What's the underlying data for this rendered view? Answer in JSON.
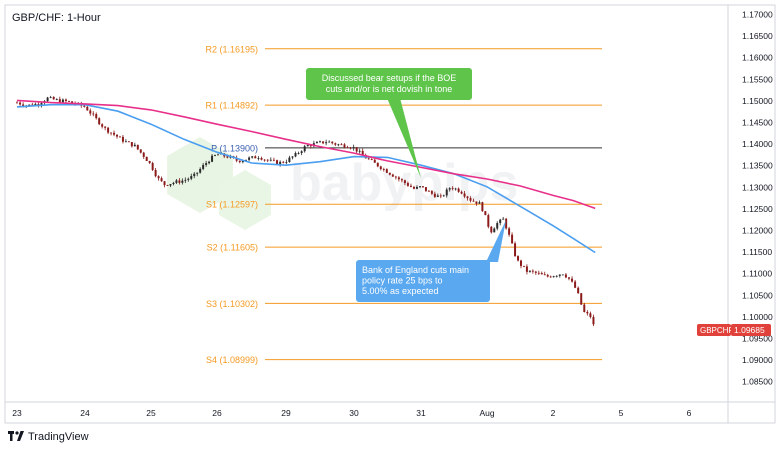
{
  "header": {
    "title": "GBP/CHF: 1-Hour"
  },
  "footer": {
    "brand": "TradingView",
    "logo_icon": "tradingview-logo-icon"
  },
  "watermark": "babypips",
  "colors": {
    "pivot_levels": "#f59a23",
    "pivot_line": "#333333",
    "ma_fast": "#4a9ef0",
    "ma_slow": "#e8308a",
    "candle_up": "#2a2a2a",
    "candle_down": "#8b1a1a",
    "callout_green": "#5ec44a",
    "callout_blue": "#5aa8f0",
    "price_tag": "#e0413a"
  },
  "chart_data": {
    "type": "line",
    "symbol": "GBPCHF",
    "last_price": "1.09685",
    "y_ticks": [
      "1.17000",
      "1.16500",
      "1.16000",
      "1.15500",
      "1.15000",
      "1.14500",
      "1.14000",
      "1.13500",
      "1.13000",
      "1.12500",
      "1.12000",
      "1.11500",
      "1.11000",
      "1.10500",
      "1.10000",
      "1.09500",
      "1.09000",
      "1.08500"
    ],
    "ylim": [
      1.084,
      1.1725
    ],
    "x_ticks": [
      "23",
      "24",
      "25",
      "26",
      "29",
      "30",
      "31",
      "Aug",
      "2",
      "5",
      "6"
    ],
    "levels": [
      {
        "label": "R2 (1.16195)",
        "value": 1.16195,
        "style": "resistance"
      },
      {
        "label": "R1 (1.14892)",
        "value": 1.14892,
        "style": "resistance"
      },
      {
        "label": "P (1.13900)",
        "value": 1.139,
        "style": "pivot"
      },
      {
        "label": "S1 (1.12597)",
        "value": 1.12597,
        "style": "support"
      },
      {
        "label": "S2 (1.11605)",
        "value": 1.11605,
        "style": "support"
      },
      {
        "label": "S3 (1.10302)",
        "value": 1.10302,
        "style": "support"
      },
      {
        "label": "S4 (1.08999)",
        "value": 1.08999,
        "style": "support"
      }
    ],
    "price_series": [
      [
        0,
        1.1495
      ],
      [
        0.15,
        1.1488
      ],
      [
        0.3,
        1.1492
      ],
      [
        0.45,
        1.1505
      ],
      [
        0.6,
        1.15
      ],
      [
        0.75,
        1.1497
      ],
      [
        0.9,
        1.149
      ],
      [
        1.0,
        1.1485
      ],
      [
        1.15,
        1.146
      ],
      [
        1.3,
        1.1435
      ],
      [
        1.45,
        1.142
      ],
      [
        1.6,
        1.1405
      ],
      [
        1.75,
        1.1395
      ],
      [
        1.9,
        1.137
      ],
      [
        2.0,
        1.135
      ],
      [
        2.1,
        1.132
      ],
      [
        2.2,
        1.1305
      ],
      [
        2.35,
        1.131
      ],
      [
        2.5,
        1.1315
      ],
      [
        2.65,
        1.1325
      ],
      [
        2.8,
        1.135
      ],
      [
        2.9,
        1.1365
      ],
      [
        3.0,
        1.1375
      ],
      [
        3.15,
        1.137
      ],
      [
        3.3,
        1.136
      ],
      [
        3.45,
        1.1365
      ],
      [
        3.6,
        1.137
      ],
      [
        3.75,
        1.136
      ],
      [
        3.9,
        1.1355
      ],
      [
        4.0,
        1.136
      ],
      [
        4.15,
        1.1375
      ],
      [
        4.3,
        1.1395
      ],
      [
        4.45,
        1.14
      ],
      [
        4.6,
        1.1405
      ],
      [
        4.75,
        1.1398
      ],
      [
        4.9,
        1.1395
      ],
      [
        5.0,
        1.139
      ],
      [
        5.15,
        1.137
      ],
      [
        5.3,
        1.1355
      ],
      [
        5.45,
        1.134
      ],
      [
        5.6,
        1.1325
      ],
      [
        5.75,
        1.131
      ],
      [
        5.9,
        1.1295
      ],
      [
        6.0,
        1.13
      ],
      [
        6.15,
        1.1285
      ],
      [
        6.3,
        1.1275
      ],
      [
        6.45,
        1.13
      ],
      [
        6.6,
        1.129
      ],
      [
        6.75,
        1.127
      ],
      [
        6.9,
        1.126
      ],
      [
        7.0,
        1.122
      ],
      [
        7.05,
        1.1195
      ],
      [
        7.15,
        1.1215
      ],
      [
        7.25,
        1.1225
      ],
      [
        7.35,
        1.118
      ],
      [
        7.45,
        1.113
      ],
      [
        7.6,
        1.1105
      ],
      [
        7.75,
        1.11
      ],
      [
        7.9,
        1.1092
      ],
      [
        8.0,
        1.1095
      ],
      [
        8.15,
        1.11
      ],
      [
        8.25,
        1.1085
      ],
      [
        8.35,
        1.106
      ],
      [
        8.45,
        1.101
      ],
      [
        8.55,
        1.1
      ],
      [
        8.62,
        1.0968
      ]
    ],
    "ma_fast": [
      [
        0,
        1.1485
      ],
      [
        0.5,
        1.149
      ],
      [
        1.0,
        1.149
      ],
      [
        1.5,
        1.1475
      ],
      [
        2.0,
        1.1445
      ],
      [
        2.5,
        1.141
      ],
      [
        3.0,
        1.138
      ],
      [
        3.5,
        1.1355
      ],
      [
        4.0,
        1.135
      ],
      [
        4.5,
        1.1358
      ],
      [
        5.0,
        1.137
      ],
      [
        5.5,
        1.1368
      ],
      [
        6.0,
        1.135
      ],
      [
        6.5,
        1.133
      ],
      [
        7.0,
        1.13
      ],
      [
        7.5,
        1.1255
      ],
      [
        8.0,
        1.121
      ],
      [
        8.3,
        1.118
      ],
      [
        8.62,
        1.1148
      ]
    ],
    "ma_slow": [
      [
        0,
        1.15
      ],
      [
        0.5,
        1.1495
      ],
      [
        1.0,
        1.1492
      ],
      [
        1.5,
        1.1488
      ],
      [
        2.0,
        1.1478
      ],
      [
        2.5,
        1.1462
      ],
      [
        3.0,
        1.1445
      ],
      [
        3.5,
        1.1428
      ],
      [
        4.0,
        1.141
      ],
      [
        4.5,
        1.1393
      ],
      [
        5.0,
        1.1378
      ],
      [
        5.5,
        1.136
      ],
      [
        6.0,
        1.1345
      ],
      [
        6.5,
        1.133
      ],
      [
        7.0,
        1.1318
      ],
      [
        7.5,
        1.1302
      ],
      [
        8.0,
        1.128
      ],
      [
        8.3,
        1.1268
      ],
      [
        8.62,
        1.125
      ]
    ],
    "annotations": [
      {
        "text": [
          "Discussed bear setups if the BOE",
          "cuts and/or is net dovish in tone"
        ],
        "style": "green"
      },
      {
        "text": [
          "Bank of England cuts main",
          "policy rate 25 bps to",
          "5.00% as expected"
        ],
        "style": "blue"
      }
    ]
  }
}
